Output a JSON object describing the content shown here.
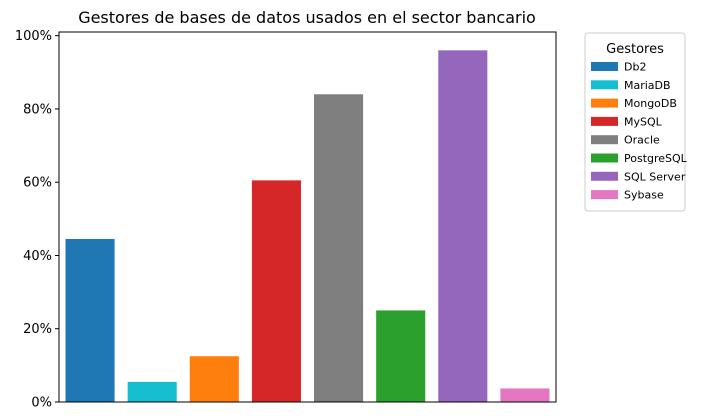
{
  "chart_data": {
    "type": "bar",
    "title": "Gestores de bases de datos usados en el sector bancario",
    "xlabel": "",
    "ylabel": "",
    "categories": [
      "Db2",
      "MariaDB",
      "MongoDB",
      "MySQL",
      "Oracle",
      "PostgreSQL",
      "SQL Server",
      "Sybase"
    ],
    "values": [
      44.5,
      5.5,
      12.5,
      60.5,
      84.0,
      25.0,
      96.0,
      3.7
    ],
    "colors": [
      "#1f77b4",
      "#17becf",
      "#ff7f0e",
      "#d62728",
      "#7f7f7f",
      "#2ca02c",
      "#9467bd",
      "#e377c2"
    ],
    "ylim": [
      0,
      101
    ],
    "yticks": [
      0,
      20,
      40,
      60,
      80,
      100
    ],
    "ytick_labels": [
      "0%",
      "20%",
      "40%",
      "60%",
      "80%",
      "100%"
    ],
    "grid": false,
    "legend": {
      "title": "Gestores",
      "placement": "outside-right"
    }
  }
}
